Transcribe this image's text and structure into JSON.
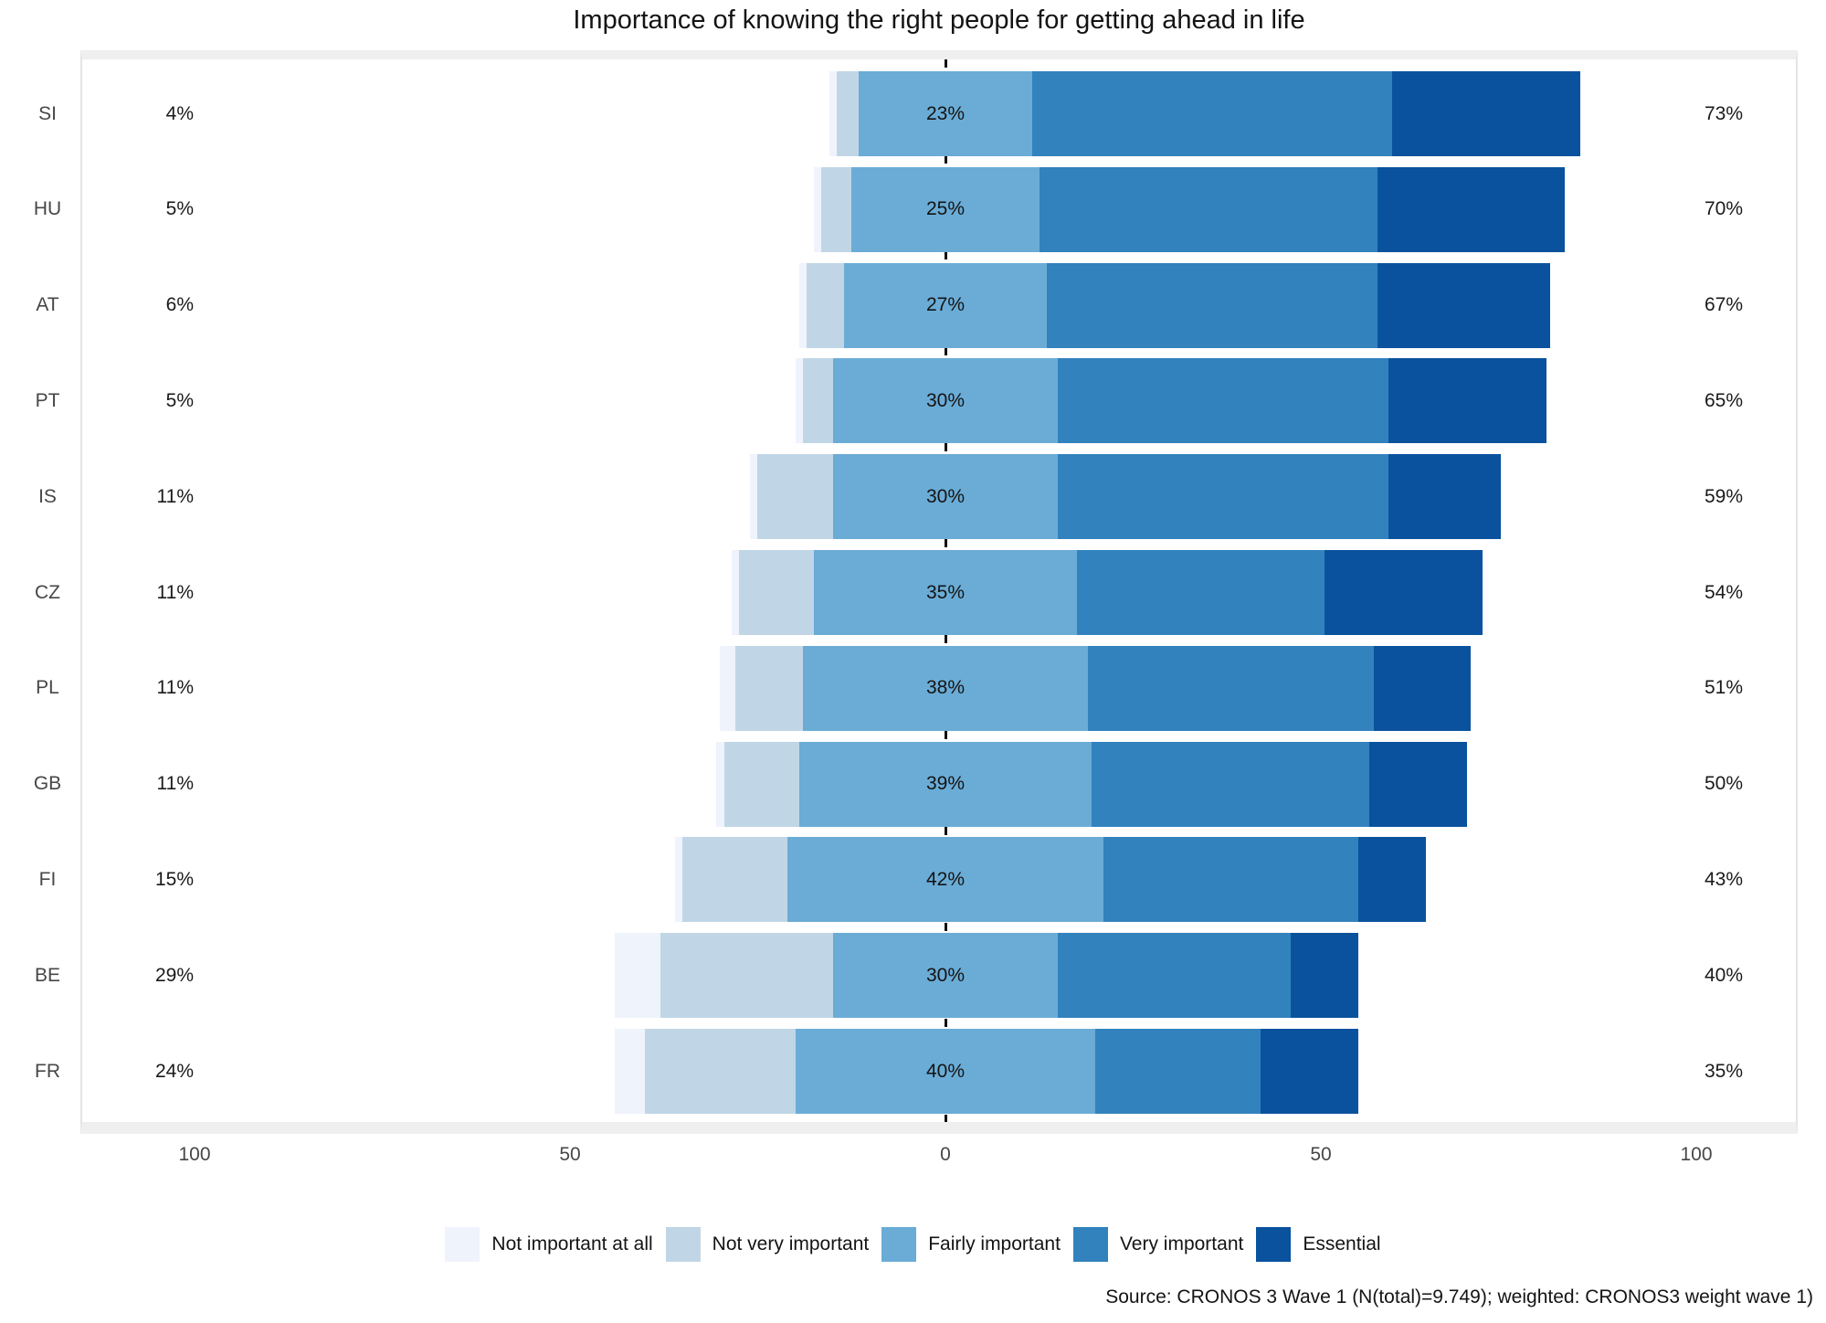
{
  "title": "Importance of knowing the right people for getting ahead in life",
  "source": "Source: CRONOS 3 Wave 1 (N(total)=9.749); weighted: CRONOS3 weight wave 1)",
  "colors": {
    "not_important_at_all": "#eff3fc",
    "not_very_important": "#c0d6e6",
    "fairly_important": "#6aacd6",
    "very_important": "#3182bd",
    "essential": "#0a529e"
  },
  "legend": [
    {
      "label": "Not important at all",
      "color": "#eff3fc"
    },
    {
      "label": "Not very important",
      "color": "#c0d6e6"
    },
    {
      "label": "Fairly important",
      "color": "#6aacd6"
    },
    {
      "label": "Very important",
      "color": "#3182bd"
    },
    {
      "label": "Essential",
      "color": "#0a529e"
    }
  ],
  "axis": {
    "tick_labels": [
      "100",
      "50",
      "0",
      "50",
      "100"
    ],
    "tick_values": [
      -100,
      -50,
      0,
      50,
      100
    ]
  },
  "chart_data": {
    "type": "bar",
    "subtype": "diverging-stacked-likert",
    "note": "Fairly-important segment is centered on the zero line; left label = sum of first two segments, right label = sum of last two segments",
    "categories": [
      "SI",
      "HU",
      "AT",
      "PT",
      "IS",
      "CZ",
      "PL",
      "GB",
      "FI",
      "BE",
      "FR"
    ],
    "series_labels": [
      "Not important at all",
      "Not very important",
      "Fairly important",
      "Very important",
      "Essential"
    ],
    "rows": [
      {
        "country": "SI",
        "left_label": "4%",
        "center_label": "23%",
        "right_label": "73%",
        "values": [
          1,
          3,
          23,
          48,
          25
        ]
      },
      {
        "country": "HU",
        "left_label": "5%",
        "center_label": "25%",
        "right_label": "70%",
        "values": [
          1,
          4,
          25,
          45,
          25
        ]
      },
      {
        "country": "AT",
        "left_label": "6%",
        "center_label": "27%",
        "right_label": "67%",
        "values": [
          1,
          5,
          27,
          44,
          23
        ]
      },
      {
        "country": "PT",
        "left_label": "5%",
        "center_label": "30%",
        "right_label": "65%",
        "values": [
          1,
          4,
          30,
          44,
          21
        ]
      },
      {
        "country": "IS",
        "left_label": "11%",
        "center_label": "30%",
        "right_label": "59%",
        "values": [
          1,
          10,
          30,
          44,
          15
        ]
      },
      {
        "country": "CZ",
        "left_label": "11%",
        "center_label": "35%",
        "right_label": "54%",
        "values": [
          1,
          10,
          35,
          33,
          21
        ]
      },
      {
        "country": "PL",
        "left_label": "11%",
        "center_label": "38%",
        "right_label": "51%",
        "values": [
          2,
          9,
          38,
          38,
          13
        ]
      },
      {
        "country": "GB",
        "left_label": "11%",
        "center_label": "39%",
        "right_label": "50%",
        "values": [
          1,
          10,
          39,
          37,
          13
        ]
      },
      {
        "country": "FI",
        "left_label": "15%",
        "center_label": "42%",
        "right_label": "43%",
        "values": [
          1,
          14,
          42,
          34,
          9
        ]
      },
      {
        "country": "BE",
        "left_label": "29%",
        "center_label": "30%",
        "right_label": "40%",
        "values": [
          6,
          23,
          30,
          31,
          9
        ]
      },
      {
        "country": "FR",
        "left_label": "24%",
        "center_label": "40%",
        "right_label": "35%",
        "values": [
          4,
          20,
          40,
          22,
          13
        ]
      }
    ],
    "xlim": [
      -100,
      100
    ],
    "legend_position": "bottom",
    "grid": false
  }
}
